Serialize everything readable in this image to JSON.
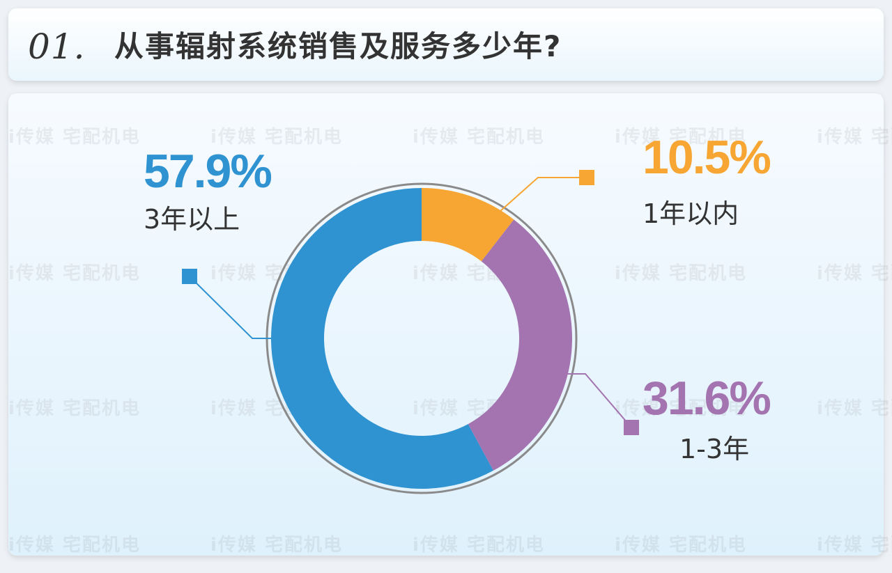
{
  "header": {
    "number": "01.",
    "question": "从事辐射系统销售及服务多少年?"
  },
  "watermark": "i传媒 宅配机电",
  "colors": {
    "ring": "#8a8a8a"
  },
  "chart_data": {
    "type": "pie",
    "style": "donut",
    "title": "",
    "slices": [
      {
        "label": "1年以内",
        "value": 10.5,
        "display": "10.5%",
        "color": "#f7a533"
      },
      {
        "label": "1-3年",
        "value": 31.6,
        "display": "31.6%",
        "color": "#a374b0"
      },
      {
        "label": "3年以上",
        "value": 57.9,
        "display": "57.9%",
        "color": "#2f93d1"
      }
    ]
  }
}
